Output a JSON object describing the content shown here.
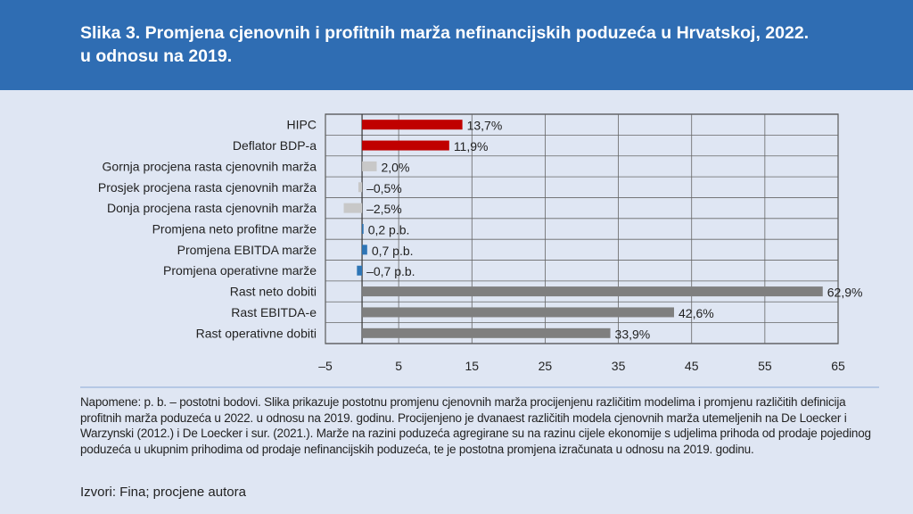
{
  "title": "Slika 3. Promjena cjenovnih i profitnih marža nefinancijskih poduzeća u Hrvatskoj, 2022. u odnosu na 2019.",
  "chart_data": {
    "type": "bar",
    "orientation": "horizontal",
    "categories": [
      "HIPC",
      "Deflator BDP-a",
      "Gornja procjena rasta cjenovnih marža",
      "Prosjek procjena rasta cjenovnih marža",
      "Donja procjena rasta cjenovnih marža",
      "Promjena neto profitne marže",
      "Promjena EBITDA marže",
      "Promjena operativne marže",
      "Rast neto dobiti",
      "Rast EBITDA-e",
      "Rast operativne dobiti"
    ],
    "values": [
      13.7,
      11.9,
      2.0,
      -0.5,
      -2.5,
      0.2,
      0.7,
      -0.7,
      62.9,
      42.6,
      33.9
    ],
    "labels": [
      "13,7%",
      "11,9%",
      "2,0%",
      "–0,5%",
      "–2,5%",
      "0,2 p.b.",
      "0,7 p.b.",
      "–0,7 p.b.",
      "62,9%",
      "42,6%",
      "33,9%"
    ],
    "colors": [
      "#c00000",
      "#c00000",
      "#c8c8c8",
      "#c8c8c8",
      "#c8c8c8",
      "#2e75b6",
      "#2e75b6",
      "#2e75b6",
      "#7f7f7f",
      "#7f7f7f",
      "#7f7f7f"
    ],
    "xlim": [
      -5,
      65
    ],
    "xticks": [
      -5,
      5,
      15,
      25,
      35,
      45,
      55,
      65
    ],
    "xtick_labels": [
      "–5",
      "5",
      "15",
      "25",
      "35",
      "45",
      "55",
      "65"
    ],
    "grid": true
  },
  "notes": "Napomene: p. b. – postotni bodovi. Slika prikazuje postotnu promjenu cjenovnih marža procijenjenu različitim modelima i promjenu različitih definicija profitnih marža poduzeća u 2022. u odnosu na 2019. godinu. Procijenjeno je dvanaest različitih modela cjenovnih marža utemeljenih na De Loecker i Warzynski (2012.) i De Loecker i sur. (2021.). Marže na razini poduzeća agregirane su na razinu cijele ekonomije s udjelima prihoda od prodaje pojedinog poduzeća u ukupnim prihodima od prodaje nefinancijskih poduzeća, te je postotna promjena izračunata u odnosu na 2019. godinu.",
  "sources": "Izvori: Fina; procjene autora"
}
